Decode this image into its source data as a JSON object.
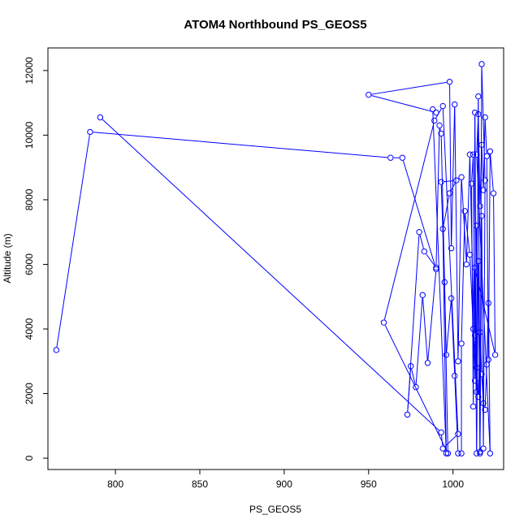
{
  "chart_data": {
    "type": "line",
    "title": "ATOM4 Northbound PS_GEOS5",
    "xlabel": "PS_GEOS5",
    "ylabel": "Altitude (m)",
    "xlim": [
      760,
      1030
    ],
    "ylim": [
      -350,
      12700
    ],
    "x_ticks": [
      800,
      850,
      900,
      950,
      1000
    ],
    "y_ticks": [
      0,
      2000,
      4000,
      6000,
      8000,
      10000,
      12000
    ],
    "grid": false,
    "legend": "none",
    "markers": "open-circle",
    "color": "#0000ff",
    "series": [
      {
        "points": [
          [
            765,
            3350
          ],
          [
            785,
            10100
          ],
          [
            963,
            9300
          ],
          [
            970,
            9300
          ],
          [
            990,
            5850
          ],
          [
            985,
            2950
          ],
          [
            982,
            5050
          ],
          [
            978,
            2200
          ],
          [
            975,
            2850
          ],
          [
            973,
            1350
          ],
          [
            980,
            7000
          ],
          [
            983,
            6400
          ],
          [
            990,
            5900
          ],
          [
            992,
            10300
          ],
          [
            993,
            10050
          ],
          [
            996,
            3200
          ],
          [
            999,
            4950
          ],
          [
            1001,
            2550
          ],
          [
            1003,
            150
          ],
          [
            1005,
            150
          ],
          [
            1005,
            3550
          ],
          [
            1007,
            7650
          ],
          [
            1010,
            6300
          ],
          [
            1012,
            4000
          ],
          [
            1014,
            2800
          ],
          [
            1015,
            1900
          ],
          [
            1016,
            3900
          ],
          [
            1017,
            2600
          ],
          [
            1018,
            1700
          ],
          [
            1019,
            1500
          ],
          [
            1020,
            2900
          ],
          [
            1021,
            4800
          ],
          [
            1022,
            150
          ],
          [
            1014,
            9400
          ],
          [
            1015,
            10650
          ],
          [
            1016,
            7800
          ],
          [
            1017,
            9700
          ],
          [
            1018,
            8300
          ],
          [
            1019,
            10550
          ],
          [
            1020,
            9350
          ],
          [
            1021,
            3050
          ],
          [
            1022,
            9500
          ],
          [
            1024,
            8200
          ],
          [
            1025,
            3200
          ],
          [
            1013,
            5900
          ],
          [
            1014,
            150
          ],
          [
            1015,
            6100
          ],
          [
            1016,
            150
          ],
          [
            1017,
            7500
          ],
          [
            1018,
            300
          ],
          [
            1019,
            8600
          ],
          [
            1017,
            12200
          ],
          [
            1016,
            200
          ],
          [
            1015,
            11200
          ],
          [
            1014,
            2050
          ],
          [
            1013,
            10700
          ],
          [
            1012,
            1600
          ],
          [
            1011,
            8500
          ],
          [
            1012,
            9400
          ],
          [
            1013,
            3800
          ],
          [
            1014,
            7200
          ],
          [
            1013,
            2400
          ],
          [
            1010,
            9400
          ],
          [
            1008,
            6000
          ],
          [
            1005,
            8700
          ],
          [
            1003,
            3000
          ],
          [
            1001,
            10950
          ],
          [
            999,
            6500
          ],
          [
            998,
            11650
          ],
          [
            950,
            11250
          ],
          [
            990,
            10700
          ],
          [
            988,
            10800
          ],
          [
            996,
            150
          ],
          [
            994,
            7100
          ],
          [
            998,
            8200
          ],
          [
            1002,
            8600
          ],
          [
            993,
            8550
          ],
          [
            995,
            5450
          ],
          [
            997,
            150
          ],
          [
            959,
            4200
          ],
          [
            989,
            10450
          ],
          [
            994,
            10900
          ],
          [
            1003,
            750
          ],
          [
            994,
            300
          ],
          [
            993,
            800
          ],
          [
            791,
            10550
          ]
        ]
      }
    ]
  }
}
